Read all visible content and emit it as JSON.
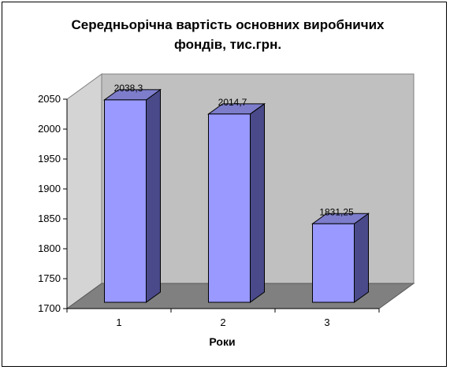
{
  "chart_data": {
    "type": "bar",
    "style": "3d-column",
    "title_lines": [
      "Середньорічна вартість основних виробничих",
      "фондів, тис.грн."
    ],
    "categories": [
      "1",
      "2",
      "3"
    ],
    "values": [
      2038.3,
      2014.7,
      1831.25
    ],
    "data_labels": [
      "2038,3",
      "2014,7",
      "1831,25"
    ],
    "xlabel": "Роки",
    "ylabel": "",
    "ylim": [
      1700,
      2050
    ],
    "yticks": [
      1700,
      1750,
      1800,
      1850,
      1900,
      1950,
      2000,
      2050
    ],
    "ytick_labels": [
      "1700",
      "1750",
      "1800",
      "1850",
      "1900",
      "1950",
      "2000",
      "2050"
    ],
    "grid": false,
    "legend": "none",
    "colors": {
      "bar_front": "#9999ff",
      "bar_side": "#4a4a8a",
      "bar_top": "#7d7dcc",
      "back_wall": "#c0c0c0",
      "floor": "#808080",
      "side_wall": "#d4d4d4"
    }
  }
}
